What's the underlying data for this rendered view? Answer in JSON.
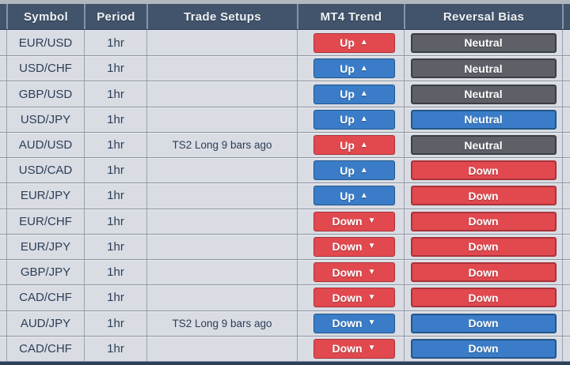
{
  "header": {
    "columns": [
      "Symbol",
      "Period",
      "Trade Setups",
      "MT4 Trend",
      "Reversal Bias"
    ]
  },
  "arrows": {
    "up": "▲",
    "down": "▼"
  },
  "colors": {
    "top_strip": "#b2b6be",
    "header_bg": "#42546b",
    "header_text": "#eef1f6",
    "header_divider": "#8892a5",
    "row_bg": "#d9dce3",
    "row_separator": "#8b92a0",
    "column_divider": "#9aa1af",
    "cell_text": "#2c3e57",
    "bottom_bar": "#2c4057",
    "badge_text": "#ffffff",
    "badge": {
      "red": {
        "bg": "#e1494f",
        "border": "#a83339"
      },
      "blue": {
        "bg": "#3a7cc7",
        "border": "#235689"
      },
      "gray": {
        "bg": "#5d6067",
        "border": "#3a3d44"
      }
    }
  },
  "rows": [
    {
      "symbol": "EUR/USD",
      "period": "1hr",
      "trade_setup": "",
      "trend": {
        "label": "Up",
        "direction": "up",
        "color": "red"
      },
      "bias": {
        "label": "Neutral",
        "color": "gray"
      }
    },
    {
      "symbol": "USD/CHF",
      "period": "1hr",
      "trade_setup": "",
      "trend": {
        "label": "Up",
        "direction": "up",
        "color": "blue"
      },
      "bias": {
        "label": "Neutral",
        "color": "gray"
      }
    },
    {
      "symbol": "GBP/USD",
      "period": "1hr",
      "trade_setup": "",
      "trend": {
        "label": "Up",
        "direction": "up",
        "color": "blue"
      },
      "bias": {
        "label": "Neutral",
        "color": "gray"
      }
    },
    {
      "symbol": "USD/JPY",
      "period": "1hr",
      "trade_setup": "",
      "trend": {
        "label": "Up",
        "direction": "up",
        "color": "blue"
      },
      "bias": {
        "label": "Neutral",
        "color": "blue"
      }
    },
    {
      "symbol": "AUD/USD",
      "period": "1hr",
      "trade_setup": "TS2 Long 9 bars ago",
      "trend": {
        "label": "Up",
        "direction": "up",
        "color": "red"
      },
      "bias": {
        "label": "Neutral",
        "color": "gray"
      }
    },
    {
      "symbol": "USD/CAD",
      "period": "1hr",
      "trade_setup": "",
      "trend": {
        "label": "Up",
        "direction": "up",
        "color": "blue"
      },
      "bias": {
        "label": "Down",
        "color": "red"
      }
    },
    {
      "symbol": "EUR/JPY",
      "period": "1hr",
      "trade_setup": "",
      "trend": {
        "label": "Up",
        "direction": "up",
        "color": "blue"
      },
      "bias": {
        "label": "Down",
        "color": "red"
      }
    },
    {
      "symbol": "EUR/CHF",
      "period": "1hr",
      "trade_setup": "",
      "trend": {
        "label": "Down",
        "direction": "down",
        "color": "red"
      },
      "bias": {
        "label": "Down",
        "color": "red"
      }
    },
    {
      "symbol": "EUR/JPY",
      "period": "1hr",
      "trade_setup": "",
      "trend": {
        "label": "Down",
        "direction": "down",
        "color": "red"
      },
      "bias": {
        "label": "Down",
        "color": "red"
      }
    },
    {
      "symbol": "GBP/JPY",
      "period": "1hr",
      "trade_setup": "",
      "trend": {
        "label": "Down",
        "direction": "down",
        "color": "red"
      },
      "bias": {
        "label": "Down",
        "color": "red"
      }
    },
    {
      "symbol": "CAD/CHF",
      "period": "1hr",
      "trade_setup": "",
      "trend": {
        "label": "Down",
        "direction": "down",
        "color": "red"
      },
      "bias": {
        "label": "Down",
        "color": "red"
      }
    },
    {
      "symbol": "AUD/JPY",
      "period": "1hr",
      "trade_setup": "TS2 Long 9 bars ago",
      "trend": {
        "label": "Down",
        "direction": "down",
        "color": "blue"
      },
      "bias": {
        "label": "Down",
        "color": "blue"
      }
    },
    {
      "symbol": "CAD/CHF",
      "period": "1hr",
      "trade_setup": "",
      "trend": {
        "label": "Down",
        "direction": "down",
        "color": "red"
      },
      "bias": {
        "label": "Down",
        "color": "blue"
      }
    }
  ]
}
